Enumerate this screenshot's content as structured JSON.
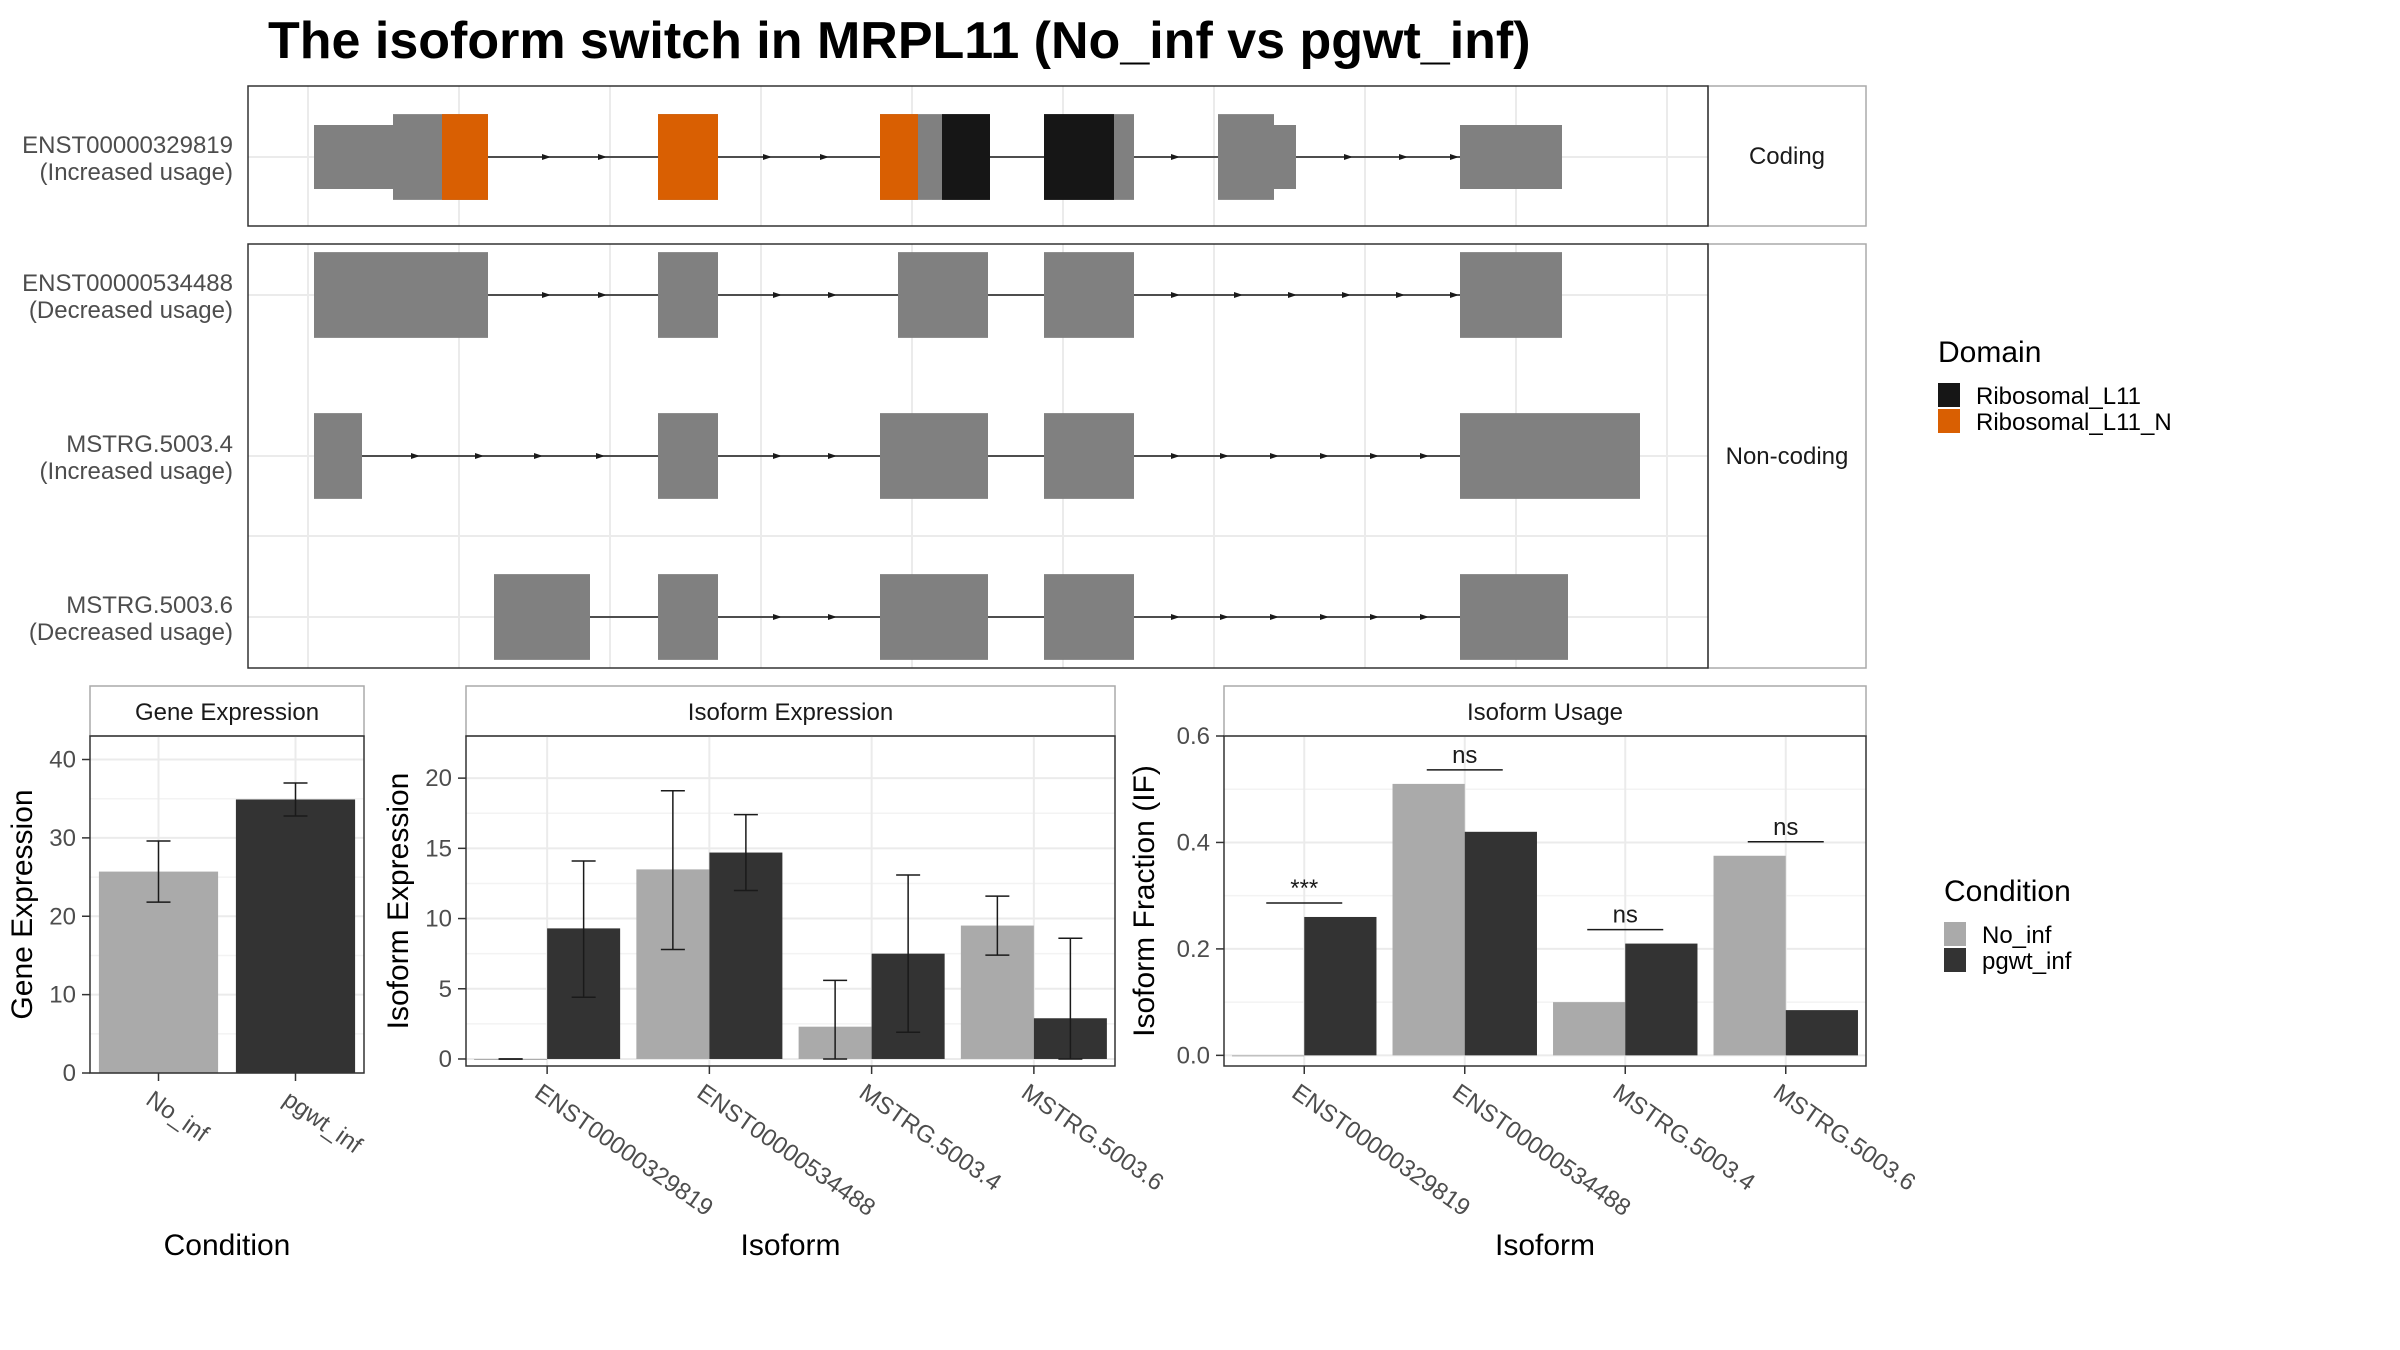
{
  "title": "The isoform switch in MRPL11 (No_inf vs pgwt_inf)",
  "colors": {
    "exon": "#808080",
    "Ribosomal_L11": "#161616",
    "Ribosomal_L11_N": "#d95f02",
    "No_inf": "#aaaaaa",
    "pgwt_inf": "#333333",
    "panel_border": "#333333",
    "strip_border": "#aaaaaa",
    "grid": "#ebebeb",
    "text": "#333333"
  },
  "legends": {
    "domain": {
      "title": "Domain",
      "items": [
        "Ribosomal_L11",
        "Ribosomal_L11_N"
      ]
    },
    "condition": {
      "title": "Condition",
      "items": [
        "No_inf",
        "pgwt_inf"
      ]
    }
  },
  "chart_data": [
    {
      "type": "gene-structure",
      "facets": [
        {
          "label": "Coding",
          "transcripts": [
            "ENST00000329819"
          ]
        },
        {
          "label": "Non-coding",
          "transcripts": [
            "ENST00000534488",
            "MSTRG.5003.4",
            "MSTRG.5003.6"
          ]
        }
      ],
      "transcripts": [
        {
          "id": "ENST00000329819",
          "usage": "(Increased usage)"
        },
        {
          "id": "ENST00000534488",
          "usage": "(Decreased usage)"
        },
        {
          "id": "MSTRG.5003.4",
          "usage": "(Increased usage)"
        },
        {
          "id": "MSTRG.5003.6",
          "usage": "(Decreased usage)"
        }
      ]
    },
    {
      "type": "bar",
      "title": "Gene Expression",
      "xlabel": "Condition",
      "ylabel": "Gene Expression",
      "ylim": [
        0,
        43
      ],
      "yticks": [
        0,
        10,
        20,
        30,
        40
      ],
      "categories": [
        "No_inf",
        "pgwt_inf"
      ],
      "values": [
        25.7,
        34.9
      ],
      "error_low": [
        21.8,
        32.8
      ],
      "error_high": [
        29.6,
        37.0
      ]
    },
    {
      "type": "bar",
      "title": "Isoform Expression",
      "xlabel": "Isoform",
      "ylabel": "Isoform Expression",
      "ylim": [
        -0.5,
        23
      ],
      "yticks": [
        0,
        5,
        10,
        15,
        20
      ],
      "categories": [
        "ENST00000329819",
        "ENST00000534488",
        "MSTRG.5003.4",
        "MSTRG.5003.6"
      ],
      "series": [
        {
          "name": "No_inf",
          "values": [
            0,
            13.5,
            2.3,
            9.5
          ],
          "error_low": [
            0,
            7.8,
            0,
            7.4
          ],
          "error_high": [
            0,
            19.1,
            5.6,
            11.6
          ]
        },
        {
          "name": "pgwt_inf",
          "values": [
            9.3,
            14.7,
            7.5,
            2.9
          ],
          "error_low": [
            4.4,
            12.0,
            1.9,
            0
          ],
          "error_high": [
            14.1,
            17.4,
            13.1,
            8.6
          ]
        }
      ]
    },
    {
      "type": "bar",
      "title": "Isoform Usage",
      "xlabel": "Isoform",
      "ylabel": "Isoform Fraction (IF)",
      "ylim": [
        -0.02,
        0.6
      ],
      "yticks": [
        "0.0",
        "0.2",
        "0.4",
        "0.6"
      ],
      "categories": [
        "ENST00000329819",
        "ENST00000534488",
        "MSTRG.5003.4",
        "MSTRG.5003.6"
      ],
      "series": [
        {
          "name": "No_inf",
          "values": [
            0.0,
            0.51,
            0.1,
            0.375
          ]
        },
        {
          "name": "pgwt_inf",
          "values": [
            0.26,
            0.42,
            0.21,
            0.085
          ]
        }
      ],
      "significance": [
        "***",
        "ns",
        "ns",
        "ns"
      ]
    }
  ]
}
